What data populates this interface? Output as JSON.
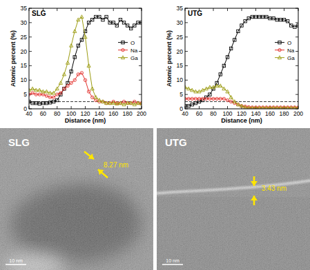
{
  "chart_data": [
    {
      "type": "line",
      "title": "SLG",
      "x_label": "Distance (nm)",
      "y_label": "Atomic percent (%)",
      "x": [
        40,
        45,
        50,
        55,
        60,
        65,
        70,
        75,
        80,
        85,
        90,
        95,
        100,
        105,
        110,
        115,
        120,
        125,
        130,
        135,
        140,
        145,
        150,
        155,
        160,
        165,
        170,
        175,
        180,
        185,
        190,
        195,
        200
      ],
      "series": [
        {
          "name": "O",
          "color": "#000000",
          "marker": "square",
          "values": [
            2.5,
            2,
            2,
            1.8,
            2,
            2,
            2.2,
            2.5,
            3,
            5,
            7,
            9,
            13,
            18,
            22,
            24,
            27,
            30,
            31,
            32,
            32,
            31,
            32,
            30,
            30,
            29,
            31,
            30,
            29,
            28,
            29,
            30,
            30
          ]
        },
        {
          "name": "Na",
          "color": "#e3312d",
          "marker": "circle",
          "values": [
            5,
            5.5,
            5,
            5,
            5,
            4.5,
            4,
            4,
            5,
            5.5,
            7,
            8,
            9,
            10,
            12,
            12.5,
            10,
            6,
            4,
            3,
            2.5,
            2.5,
            2,
            2,
            2.5,
            2,
            2,
            2.5,
            2,
            2,
            2.5,
            2,
            2
          ]
        },
        {
          "name": "Ga",
          "color": "#9c9c12",
          "marker": "triangle",
          "values": [
            6.5,
            7,
            6.5,
            6.5,
            6,
            6,
            5.5,
            5.5,
            7,
            9,
            12,
            16,
            22,
            27,
            31,
            32,
            25,
            15,
            7,
            4,
            3,
            2.5,
            2,
            2,
            2,
            1.8,
            2,
            1.5,
            2,
            2,
            1.5,
            2,
            1.8
          ]
        }
      ],
      "reference_line": 2.5,
      "xlim": [
        40,
        200
      ],
      "xticks": [
        40,
        60,
        80,
        100,
        120,
        140,
        160,
        180,
        200
      ],
      "ylim": [
        0,
        35
      ],
      "yticks": [
        0,
        5,
        10,
        15,
        20,
        25,
        30,
        35
      ],
      "grid": false,
      "legend": "right"
    },
    {
      "type": "line",
      "title": "UTG",
      "x_label": "Distance (nm)",
      "y_label": "Atomic percent (%)",
      "x": [
        40,
        45,
        50,
        55,
        60,
        65,
        70,
        75,
        80,
        85,
        90,
        95,
        100,
        105,
        110,
        115,
        120,
        125,
        130,
        135,
        140,
        145,
        150,
        155,
        160,
        165,
        170,
        175,
        180,
        185,
        190,
        195,
        200
      ],
      "series": [
        {
          "name": "O",
          "color": "#000000",
          "marker": "square",
          "values": [
            1,
            1,
            1.5,
            2,
            2.5,
            3,
            4,
            5,
            7,
            9,
            12,
            15,
            18,
            21,
            24,
            27,
            29,
            30.5,
            31.5,
            32,
            32,
            32,
            32,
            32,
            31.5,
            31.5,
            31,
            31,
            31,
            30.5,
            29,
            28.5,
            29
          ]
        },
        {
          "name": "Na",
          "color": "#e3312d",
          "marker": "circle",
          "values": [
            3.5,
            3.5,
            3.5,
            3.5,
            3.5,
            3.5,
            3.5,
            3.5,
            3.5,
            3.5,
            3.5,
            3.5,
            3,
            2.5,
            2,
            1.5,
            1,
            0.8,
            0.6,
            0.5,
            0.5,
            0.5,
            0.5,
            0.5,
            0.5,
            0.5,
            0.5,
            0.5,
            0.5,
            0.5,
            0.5,
            0.5,
            0.5
          ]
        },
        {
          "name": "Ga",
          "color": "#9c9c12",
          "marker": "triangle",
          "values": [
            7.5,
            7,
            6.5,
            6,
            6,
            6.5,
            7,
            7.5,
            7.5,
            8,
            8,
            7,
            6,
            4,
            2.5,
            1.5,
            1,
            0.5,
            0.3,
            0.3,
            0.3,
            0.3,
            0.3,
            0.3,
            0.3,
            0.3,
            0.3,
            0.3,
            0.3,
            0.3,
            0.3,
            0.3,
            0.3
          ]
        }
      ],
      "reference_line": 2.5,
      "xlim": [
        40,
        200
      ],
      "xticks": [
        40,
        60,
        80,
        100,
        120,
        140,
        160,
        180,
        200
      ],
      "ylim": [
        0,
        35
      ],
      "yticks": [
        0,
        5,
        10,
        15,
        20,
        25,
        30,
        35
      ],
      "grid": false,
      "legend": "right"
    }
  ],
  "images": [
    {
      "label": "SLG",
      "thickness_label": "8.27 nm",
      "scale_bar": "10 nm"
    },
    {
      "label": "UTG",
      "thickness_label": "3.43 nm",
      "scale_bar": "10 nm"
    }
  ]
}
